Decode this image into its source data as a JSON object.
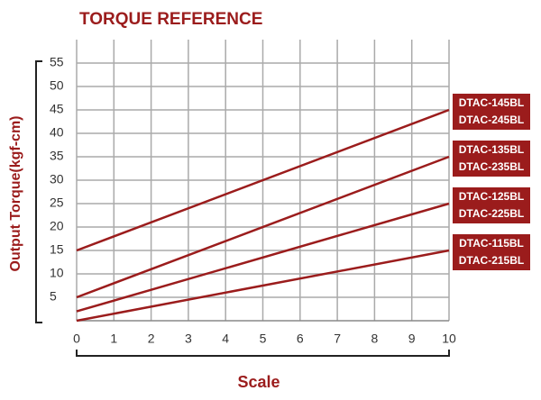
{
  "chart_data": {
    "type": "line",
    "title": "TORQUE REFERENCE",
    "xlabel": "Scale",
    "ylabel": "Output Torque(kgf-cm)",
    "x": [
      0,
      10
    ],
    "series": [
      {
        "labels": [
          "DTAC-145BL",
          "DTAC-245BL"
        ],
        "color": "#9b1c1c",
        "values": [
          15,
          45
        ]
      },
      {
        "labels": [
          "DTAC-135BL",
          "DTAC-235BL"
        ],
        "color": "#9b1c1c",
        "values": [
          5,
          35
        ]
      },
      {
        "labels": [
          "DTAC-125BL",
          "DTAC-225BL"
        ],
        "color": "#9b1c1c",
        "values": [
          2,
          25
        ]
      },
      {
        "labels": [
          "DTAC-115BL",
          "DTAC-215BL"
        ],
        "color": "#9b1c1c",
        "values": [
          0,
          15
        ]
      }
    ],
    "xlim": [
      0,
      10
    ],
    "xticks": [
      0,
      1,
      2,
      3,
      4,
      5,
      6,
      7,
      8,
      9,
      10
    ],
    "ylim": [
      0,
      60
    ],
    "yticks": [
      5,
      10,
      15,
      20,
      25,
      30,
      35,
      40,
      45,
      50,
      55
    ],
    "grid": true
  }
}
